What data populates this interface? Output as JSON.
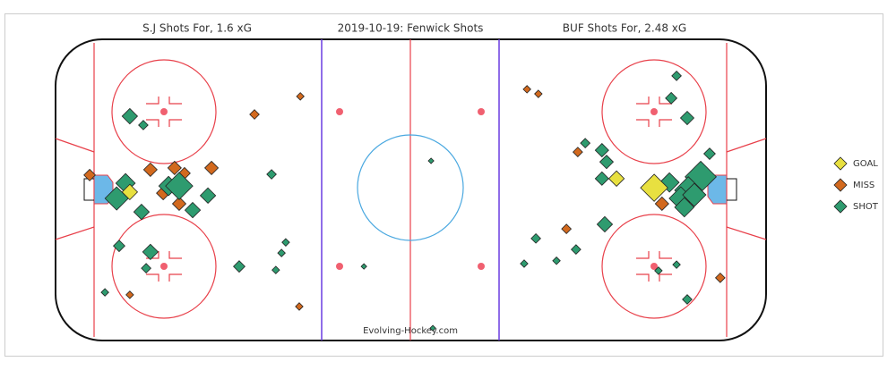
{
  "chart_data": {
    "type": "scatter",
    "title": "2019-10-19:  Fenwick Shots",
    "left_title": "S.J Shots For, 1.6 xG",
    "right_title": "BUF Shots For, 2.48 xG",
    "credit": "Evolving-Hockey.com",
    "xlim": [
      -100,
      100
    ],
    "ylim": [
      -42.5,
      42.5
    ],
    "series": [
      {
        "name": "GOAL",
        "color": "#e8e040",
        "x": [
          -79.1,
          57.9,
          68.5
        ],
        "y": [
          -0.6,
          3.2,
          0.6
        ],
        "size": [
          6,
          6,
          12
        ]
      },
      {
        "name": "MISS",
        "color": "#d2691e",
        "x": [
          -31.1,
          -44.0,
          -90.4,
          -73.3,
          -66.5,
          -63.7,
          -56.1,
          -69.7,
          -65.2,
          -79.1,
          -31.4,
          32.7,
          35.9,
          47.0,
          43.8,
          70.7,
          87.1
        ],
        "y": [
          26.4,
          21.3,
          4.2,
          5.7,
          6.2,
          4.7,
          6.2,
          -0.9,
          -3.9,
          -29.6,
          -32.9,
          28.4,
          27.1,
          10.7,
          -11.0,
          -3.9,
          -24.8
        ],
        "size": [
          2,
          3,
          4,
          5,
          5,
          4,
          5,
          5,
          5,
          2,
          2,
          2,
          2,
          3,
          3,
          5,
          3
        ]
      },
      {
        "name": "SHOT",
        "color": "#2e9b6f",
        "x": [
          -79.1,
          -75.3,
          -80.3,
          -82.8,
          -68.2,
          -65.2,
          -57.1,
          -61.4,
          -75.8,
          -73.3,
          -82.1,
          -74.5,
          -86.1,
          -48.3,
          -39.2,
          -35.2,
          -36.4,
          -38.0,
          -13.2,
          74.8,
          73.3,
          77.8,
          84.1,
          53.8,
          49.1,
          55.1,
          53.8,
          72.8,
          81.6,
          78.1,
          76.0,
          79.8,
          77.0,
          54.6,
          35.2,
          46.5,
          41.0,
          31.9,
          74.8,
          69.7,
          77.8,
          6.2,
          5.7
        ],
        "y": [
          20.8,
          18.3,
          1.9,
          -2.4,
          1.1,
          1.1,
          -1.6,
          -5.7,
          -6.2,
          -17.5,
          -15.8,
          -22.1,
          -28.9,
          -21.6,
          4.4,
          -14.8,
          -17.8,
          -22.6,
          -21.6,
          32.2,
          25.9,
          20.3,
          10.2,
          11.2,
          13.2,
          7.9,
          3.2,
          2.1,
          3.7,
          -0.1,
          -2.4,
          -1.4,
          -4.9,
          -9.7,
          -13.7,
          -16.8,
          -20.0,
          -20.8,
          -21.1,
          -22.8,
          -30.9,
          -39.0,
          8.2
        ],
        "size": [
          6,
          3,
          8,
          10,
          8,
          12,
          6,
          6,
          6,
          6,
          4,
          3,
          2,
          4,
          3,
          2,
          2,
          2,
          1,
          3,
          4,
          5,
          4,
          5,
          3,
          5,
          5,
          8,
          14,
          12,
          10,
          10,
          8,
          6,
          3,
          3,
          2,
          2,
          2,
          2,
          3,
          1,
          1
        ]
      }
    ]
  }
}
